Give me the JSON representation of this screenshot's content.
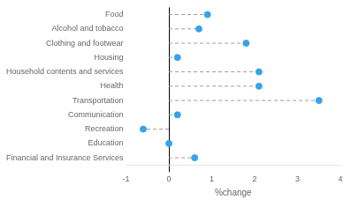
{
  "chart_data": {
    "type": "lollipop",
    "orientation": "horizontal",
    "categories": [
      "Food",
      "Alcohol and tobacco",
      "Clothing and footwear",
      "Housing",
      "Household contents and services",
      "Health",
      "Transportation",
      "Communication",
      "Recreation",
      "Education",
      "Financial and Insurance Services"
    ],
    "values": [
      0.9,
      0.7,
      1.8,
      0.2,
      2.1,
      2.1,
      3.5,
      0.2,
      -0.6,
      0.0,
      0.6
    ],
    "xlabel": "%change",
    "xlim": [
      -1,
      4
    ],
    "xticks": [
      -1,
      0,
      1,
      2,
      3,
      4
    ],
    "line_style": "dashed",
    "marker": "circle",
    "grid": false,
    "legend": false
  }
}
